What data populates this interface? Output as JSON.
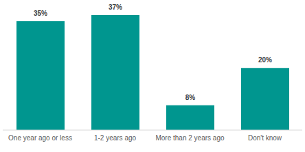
{
  "chart_data": {
    "type": "bar",
    "categories": [
      "One year ago or less",
      "1-2 years ago",
      "More than 2 years ago",
      "Don't know"
    ],
    "values": [
      35,
      37,
      8,
      20
    ],
    "value_labels": [
      "35%",
      "37%",
      "8%",
      "20%"
    ],
    "color": "#00968f",
    "ylim": [
      0,
      37
    ],
    "data_labels": true,
    "tick_labels": "x",
    "grid": false
  }
}
